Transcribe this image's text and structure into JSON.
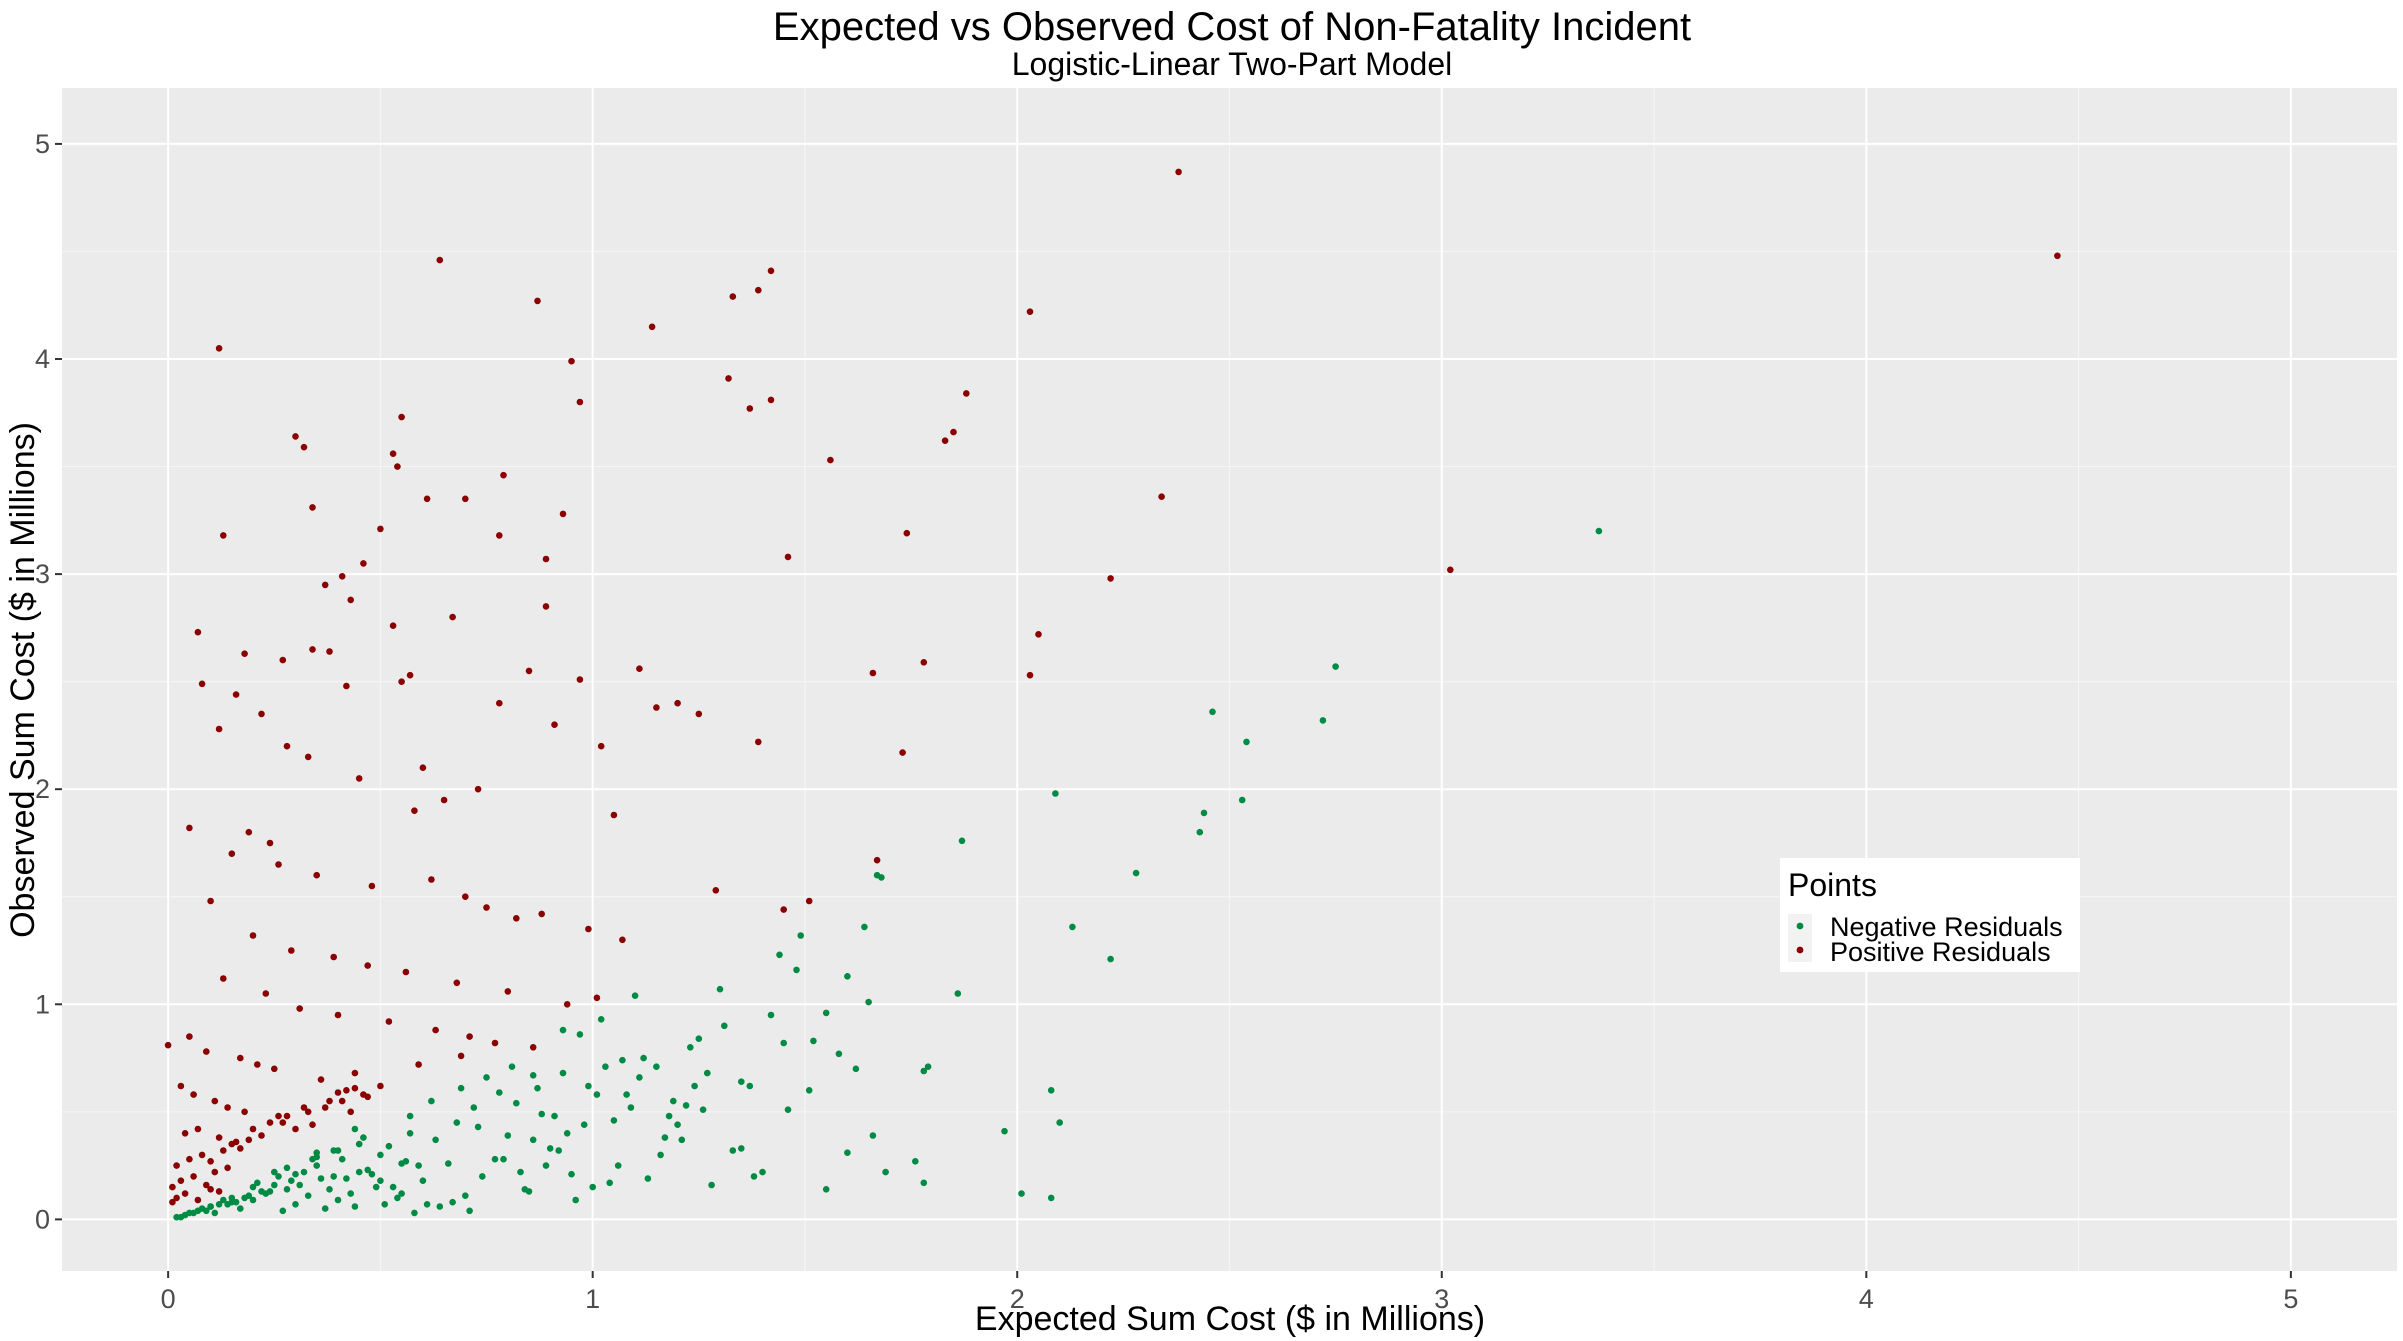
{
  "chart_data": {
    "type": "scatter",
    "title": "Expected vs Observed Cost of Non-Fatality Incident",
    "subtitle": "Logistic-Linear Two-Part Model",
    "xlabel": "Expected Sum Cost ($ in Millions)",
    "ylabel": "Observed Sum Cost ($ in Millions)",
    "xlim": [
      -0.25,
      5.25
    ],
    "ylim": [
      -0.24,
      5.26
    ],
    "x_ticks": [
      "0",
      "1",
      "2",
      "3",
      "4",
      "5"
    ],
    "y_ticks": [
      "0",
      "1",
      "2",
      "3",
      "4",
      "5"
    ],
    "grid": true,
    "legend": {
      "title": "Points",
      "position": "right",
      "entries": [
        "Negative Residuals",
        "Positive Residuals"
      ]
    },
    "colors": {
      "panel": "#EBEBEB",
      "grid_major": "#FFFFFF",
      "grid_minor": "#F5F5F5",
      "negative": "#008B45",
      "positive": "#8B0000"
    },
    "series": [
      {
        "name": "Negative Residuals",
        "color": "#008B45",
        "x": [
          3.37,
          2.75,
          2.72,
          2.54,
          2.53,
          2.46,
          2.44,
          2.43,
          2.28,
          2.22,
          2.13,
          2.09,
          2.08,
          2.08,
          2.1,
          2.01,
          1.97,
          1.87,
          1.86,
          1.79,
          1.78,
          1.78,
          1.76,
          1.68,
          1.67,
          1.66,
          1.64,
          1.6,
          1.62,
          1.55,
          1.51,
          1.49,
          1.46,
          1.38,
          1.35,
          1.3,
          1.25,
          1.26,
          1.21,
          1.1,
          1.02,
          1.03,
          1.11,
          1.0,
          0.97,
          0.93,
          0.89,
          0.86,
          0.82,
          0.78,
          0.95,
          1.05,
          1.15,
          0.99,
          0.91,
          0.86,
          0.77,
          0.69,
          1.44,
          1.52,
          1.35,
          1.23,
          1.18,
          1.08,
          1.55,
          1.6,
          1.69,
          1.42,
          1.48,
          1.33,
          1.28,
          1.2,
          1.12,
          0.94,
          0.83,
          0.81,
          0.73,
          0.66,
          0.62,
          0.6,
          0.57,
          0.55,
          0.52,
          0.5,
          0.48,
          0.45,
          0.43,
          0.41,
          0.39,
          0.36,
          0.34,
          0.31,
          0.28,
          0.26,
          0.23,
          0.21,
          0.18,
          0.15,
          0.13,
          0.1,
          0.08,
          0.05,
          0.02,
          0.71,
          0.67,
          0.64,
          0.58,
          0.54,
          0.49,
          0.44,
          0.4,
          0.37,
          0.33,
          0.3,
          0.27,
          0.24,
          0.2,
          0.17,
          0.14,
          0.11,
          0.07,
          0.04,
          0.75,
          0.79,
          0.84,
          0.88,
          0.92,
          0.96,
          1.01,
          1.06,
          1.13,
          1.17,
          1.22,
          1.27,
          0.63,
          0.59,
          0.56,
          0.53,
          0.47,
          0.42,
          0.38,
          0.35,
          0.32,
          0.29,
          0.25,
          0.22,
          0.19,
          0.16,
          0.12,
          0.09,
          0.06,
          0.03,
          0.7,
          0.74,
          0.8,
          0.85,
          0.9,
          0.98,
          1.04,
          1.09,
          1.16,
          1.24,
          0.61,
          0.51,
          0.46,
          0.39,
          0.28,
          0.35,
          0.44,
          0.57,
          0.68,
          0.72,
          0.87,
          0.93,
          1.07,
          1.19,
          1.31,
          1.37,
          1.4,
          1.45,
          1.58,
          1.65,
          0.5,
          0.55,
          0.45,
          0.4,
          0.3,
          0.2,
          0.25,
          0.15,
          0.1,
          0.35
        ],
        "y": [
          3.2,
          2.57,
          2.32,
          2.22,
          1.95,
          2.36,
          1.89,
          1.8,
          1.61,
          1.21,
          1.36,
          1.98,
          0.6,
          0.1,
          0.45,
          0.12,
          0.41,
          1.76,
          1.05,
          0.71,
          0.69,
          0.17,
          0.27,
          1.59,
          1.6,
          0.39,
          1.36,
          1.13,
          0.7,
          0.96,
          0.6,
          1.32,
          0.51,
          0.2,
          0.33,
          1.07,
          0.84,
          0.51,
          0.37,
          1.04,
          0.93,
          0.71,
          0.66,
          0.15,
          0.86,
          0.88,
          0.25,
          0.67,
          0.54,
          0.59,
          0.21,
          0.46,
          0.71,
          0.62,
          0.48,
          0.37,
          0.28,
          0.61,
          1.23,
          0.83,
          0.64,
          0.8,
          0.48,
          0.58,
          0.14,
          0.31,
          0.22,
          0.95,
          1.16,
          0.32,
          0.16,
          0.44,
          0.75,
          0.4,
          0.22,
          0.71,
          0.43,
          0.26,
          0.55,
          0.18,
          0.48,
          0.12,
          0.34,
          0.3,
          0.21,
          0.35,
          0.12,
          0.28,
          0.2,
          0.19,
          0.28,
          0.16,
          0.14,
          0.2,
          0.12,
          0.17,
          0.1,
          0.08,
          0.09,
          0.06,
          0.05,
          0.03,
          0.01,
          0.04,
          0.08,
          0.06,
          0.03,
          0.1,
          0.15,
          0.06,
          0.09,
          0.05,
          0.11,
          0.07,
          0.04,
          0.13,
          0.09,
          0.05,
          0.07,
          0.03,
          0.04,
          0.02,
          0.66,
          0.28,
          0.14,
          0.49,
          0.32,
          0.09,
          0.58,
          0.25,
          0.19,
          0.38,
          0.53,
          0.68,
          0.37,
          0.25,
          0.27,
          0.15,
          0.23,
          0.19,
          0.14,
          0.25,
          0.22,
          0.18,
          0.16,
          0.13,
          0.11,
          0.08,
          0.07,
          0.04,
          0.03,
          0.01,
          0.11,
          0.2,
          0.39,
          0.13,
          0.33,
          0.44,
          0.17,
          0.52,
          0.3,
          0.62,
          0.07,
          0.07,
          0.38,
          0.32,
          0.24,
          0.29,
          0.42,
          0.4,
          0.45,
          0.52,
          0.61,
          0.68,
          0.74,
          0.55,
          0.9,
          0.62,
          0.22,
          0.82,
          0.77,
          1.01,
          0.18,
          0.26,
          0.22,
          0.32,
          0.21,
          0.15,
          0.22,
          0.1,
          0.06,
          0.31
        ]
      },
      {
        "name": "Positive Residuals",
        "color": "#8B0000",
        "x": [
          2.38,
          4.45,
          0.64,
          0.12,
          1.42,
          1.39,
          0.87,
          1.33,
          2.03,
          1.14,
          0.95,
          1.32,
          1.88,
          1.42,
          1.37,
          0.97,
          0.55,
          0.3,
          0.32,
          0.53,
          1.85,
          1.83,
          1.56,
          0.54,
          0.79,
          2.34,
          0.7,
          0.61,
          0.34,
          0.93,
          0.5,
          0.13,
          1.74,
          0.78,
          0.89,
          1.46,
          0.46,
          3.02,
          2.22,
          0.37,
          0.41,
          0.89,
          0.43,
          2.05,
          0.34,
          0.53,
          0.67,
          0.07,
          2.03,
          0.18,
          0.57,
          0.27,
          0.38,
          1.66,
          1.78,
          1.11,
          0.97,
          0.85,
          0.55,
          0.42,
          0.78,
          0.91,
          1.25,
          1.39,
          1.02,
          0.12,
          0.08,
          0.16,
          0.22,
          0.28,
          0.33,
          0.45,
          0.6,
          0.73,
          1.73,
          1.2,
          1.15,
          0.65,
          0.58,
          1.05,
          0.19,
          0.24,
          0.05,
          0.15,
          0.26,
          0.35,
          0.48,
          0.62,
          0.7,
          0.75,
          0.82,
          0.88,
          0.99,
          1.07,
          1.29,
          1.45,
          1.51,
          1.67,
          0.1,
          0.2,
          0.29,
          0.39,
          0.47,
          0.56,
          0.68,
          0.8,
          0.94,
          1.01,
          0.13,
          0.23,
          0.31,
          0.4,
          0.52,
          0.63,
          0.71,
          0.86,
          0.05,
          0.09,
          0.17,
          0.21,
          0.25,
          0.36,
          0.44,
          0.59,
          0.69,
          0.77,
          0.0,
          0.03,
          0.06,
          0.11,
          0.14,
          0.18,
          0.26,
          0.32,
          0.38,
          0.42,
          0.46,
          0.5,
          0.04,
          0.07,
          0.12,
          0.16,
          0.2,
          0.24,
          0.28,
          0.33,
          0.37,
          0.41,
          0.02,
          0.05,
          0.08,
          0.1,
          0.13,
          0.15,
          0.17,
          0.19,
          0.22,
          0.27,
          0.3,
          0.34,
          0.01,
          0.03,
          0.06,
          0.09,
          0.11,
          0.14,
          0.01,
          0.02,
          0.04,
          0.07,
          0.1,
          0.12,
          0.44,
          0.47,
          0.4,
          0.43
        ],
        "y": [
          4.87,
          4.48,
          4.46,
          4.05,
          4.41,
          4.32,
          4.27,
          4.29,
          4.22,
          4.15,
          3.99,
          3.91,
          3.84,
          3.81,
          3.77,
          3.8,
          3.73,
          3.64,
          3.59,
          3.56,
          3.66,
          3.62,
          3.53,
          3.5,
          3.46,
          3.36,
          3.35,
          3.35,
          3.31,
          3.28,
          3.21,
          3.18,
          3.19,
          3.18,
          3.07,
          3.08,
          3.05,
          3.02,
          2.98,
          2.95,
          2.99,
          2.85,
          2.88,
          2.72,
          2.65,
          2.76,
          2.8,
          2.73,
          2.53,
          2.63,
          2.53,
          2.6,
          2.64,
          2.54,
          2.59,
          2.56,
          2.51,
          2.55,
          2.5,
          2.48,
          2.4,
          2.3,
          2.35,
          2.22,
          2.2,
          2.28,
          2.49,
          2.44,
          2.35,
          2.2,
          2.15,
          2.05,
          2.1,
          2.0,
          2.17,
          2.4,
          2.38,
          1.95,
          1.9,
          1.88,
          1.8,
          1.75,
          1.82,
          1.7,
          1.65,
          1.6,
          1.55,
          1.58,
          1.5,
          1.45,
          1.4,
          1.42,
          1.35,
          1.3,
          1.53,
          1.44,
          1.48,
          1.67,
          1.48,
          1.32,
          1.25,
          1.22,
          1.18,
          1.15,
          1.1,
          1.06,
          1.0,
          1.03,
          1.12,
          1.05,
          0.98,
          0.95,
          0.92,
          0.88,
          0.85,
          0.8,
          0.85,
          0.78,
          0.75,
          0.72,
          0.7,
          0.65,
          0.68,
          0.72,
          0.76,
          0.82,
          0.81,
          0.62,
          0.58,
          0.55,
          0.52,
          0.5,
          0.48,
          0.52,
          0.55,
          0.6,
          0.58,
          0.62,
          0.4,
          0.42,
          0.38,
          0.36,
          0.42,
          0.45,
          0.48,
          0.5,
          0.52,
          0.55,
          0.25,
          0.28,
          0.3,
          0.27,
          0.32,
          0.35,
          0.33,
          0.37,
          0.39,
          0.45,
          0.42,
          0.44,
          0.15,
          0.18,
          0.2,
          0.16,
          0.22,
          0.24,
          0.08,
          0.1,
          0.12,
          0.09,
          0.14,
          0.13,
          0.61,
          0.57,
          0.59,
          0.5
        ]
      }
    ]
  }
}
